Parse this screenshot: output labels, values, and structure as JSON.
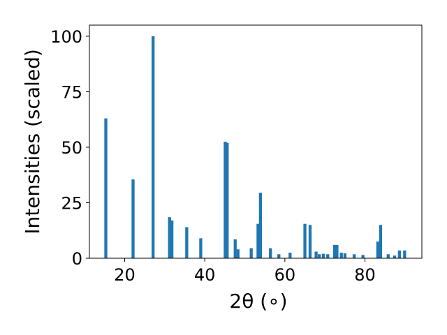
{
  "chart_data": {
    "type": "bar",
    "title": "",
    "xlabel": "2θ (∘)",
    "ylabel": "Intensities (scaled)",
    "xlim": [
      11.2,
      94.2
    ],
    "ylim": [
      0,
      105
    ],
    "xticks": [
      20,
      40,
      60,
      80
    ],
    "yticks": [
      0,
      25,
      50,
      75,
      100
    ],
    "grid": false,
    "bar_width": 0.75,
    "color": "#1f77b4",
    "bars": [
      {
        "x": 15.3,
        "y": 63
      },
      {
        "x": 22.1,
        "y": 35.5
      },
      {
        "x": 27.1,
        "y": 100
      },
      {
        "x": 31.2,
        "y": 18.5
      },
      {
        "x": 31.8,
        "y": 17
      },
      {
        "x": 35.5,
        "y": 14
      },
      {
        "x": 39.0,
        "y": 9
      },
      {
        "x": 45.1,
        "y": 52.5
      },
      {
        "x": 45.6,
        "y": 52
      },
      {
        "x": 47.6,
        "y": 8.5
      },
      {
        "x": 48.3,
        "y": 4
      },
      {
        "x": 51.6,
        "y": 4.5
      },
      {
        "x": 53.3,
        "y": 15.5
      },
      {
        "x": 53.9,
        "y": 29.5
      },
      {
        "x": 56.4,
        "y": 4.5
      },
      {
        "x": 58.5,
        "y": 1.8
      },
      {
        "x": 61.3,
        "y": 2.5
      },
      {
        "x": 65.0,
        "y": 15.5
      },
      {
        "x": 66.3,
        "y": 15
      },
      {
        "x": 67.8,
        "y": 3
      },
      {
        "x": 68.6,
        "y": 1.8
      },
      {
        "x": 69.6,
        "y": 2
      },
      {
        "x": 70.7,
        "y": 1.8
      },
      {
        "x": 72.4,
        "y": 6
      },
      {
        "x": 73.0,
        "y": 6
      },
      {
        "x": 74.1,
        "y": 2.5
      },
      {
        "x": 75.0,
        "y": 2.2
      },
      {
        "x": 77.3,
        "y": 1.8
      },
      {
        "x": 79.5,
        "y": 1.5
      },
      {
        "x": 83.2,
        "y": 7.5
      },
      {
        "x": 83.9,
        "y": 15
      },
      {
        "x": 85.8,
        "y": 1.8
      },
      {
        "x": 87.4,
        "y": 1.2
      },
      {
        "x": 88.6,
        "y": 3.5
      },
      {
        "x": 89.9,
        "y": 3.5
      }
    ]
  }
}
